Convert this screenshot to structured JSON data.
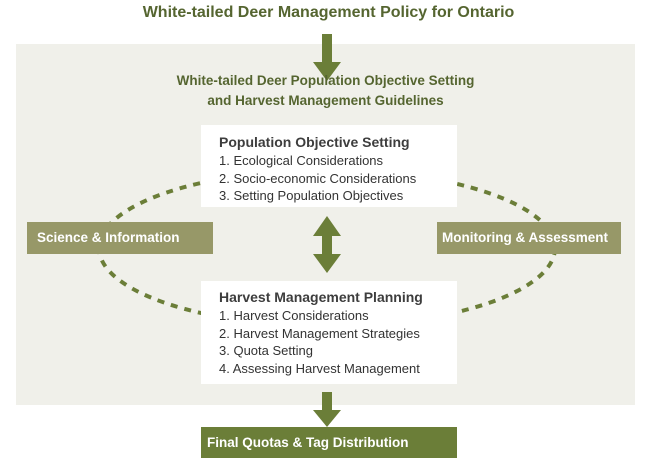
{
  "title": "White-tailed Deer Management Policy for Ontario",
  "guidelines": {
    "line1": "White-tailed Deer Population Objective Setting",
    "line2": "and Harvest Management Guidelines"
  },
  "population": {
    "heading": "Population Objective Setting",
    "items": [
      "1. Ecological Considerations",
      "2. Socio-economic Considerations",
      "3. Setting Population Objectives"
    ]
  },
  "harvest": {
    "heading": "Harvest Management Planning",
    "items": [
      "1. Harvest Considerations",
      "2. Harvest Management Strategies",
      "3. Quota Setting",
      "4. Assessing Harvest Management"
    ]
  },
  "left_box": "Science & Information",
  "right_box": "Monitoring & Assessment",
  "final": "Final Quotas & Tag Distribution",
  "colors": {
    "arrow": "#6b7e38",
    "side_box": "#979868",
    "panel": "#f0f0ea",
    "title": "#556530"
  }
}
